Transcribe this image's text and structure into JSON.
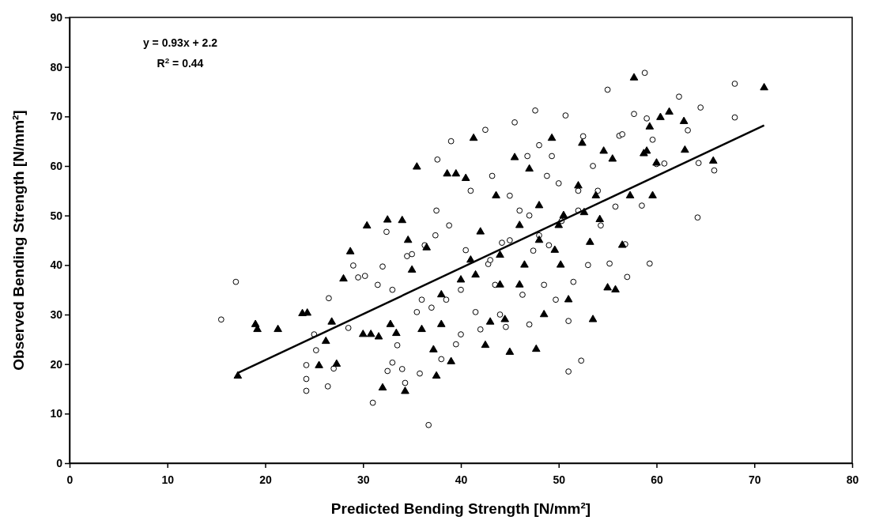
{
  "chart_data": {
    "type": "scatter",
    "xlabel": "Predicted Bending Strength [N/mm²]",
    "ylabel": "Observed Bending Strength [N/mm²]",
    "xlim": [
      0,
      80
    ],
    "xticks": [
      0,
      10,
      20,
      30,
      40,
      50,
      60,
      70,
      80
    ],
    "ylim": [
      0,
      90
    ],
    "yticks": [
      0,
      10,
      20,
      30,
      40,
      50,
      60,
      70,
      80,
      90
    ],
    "annotations": [
      "y = 0.93x + 2.2",
      "R$^{2}$ = 0.44"
    ],
    "series": [
      {
        "marker": "circle",
        "color": "#000000",
        "x": [
          15.5,
          17,
          24.2,
          24.2,
          24.2,
          25,
          25.2,
          26.4,
          26.5,
          27,
          28.5,
          29,
          29.5,
          30.2,
          31,
          31.5,
          32,
          32.4,
          32.5,
          33,
          33.5,
          34,
          34.3,
          34.5,
          35,
          35.5,
          35.8,
          36.3,
          36.7,
          37,
          37.4,
          37.5,
          37.6,
          38,
          38.5,
          38.8,
          39,
          39.5,
          40,
          40.5,
          41,
          41.5,
          42,
          42.5,
          42.8,
          43.2,
          43.5,
          44,
          44.2,
          44.6,
          45,
          45.5,
          46,
          46.3,
          46.8,
          47,
          47.4,
          47.6,
          48,
          48.5,
          48.8,
          49,
          49.3,
          49.7,
          50,
          50.3,
          50.7,
          51,
          51,
          51.5,
          52,
          52.3,
          52.5,
          53,
          53.5,
          54,
          54.3,
          55,
          55.2,
          55.8,
          56.2,
          56.5,
          56.8,
          57,
          57.7,
          58.5,
          58.8,
          59,
          59.3,
          59.6,
          60,
          60.8,
          62.3,
          63.2,
          64.2,
          64.3,
          64.5,
          65.9,
          68,
          68,
          43,
          45,
          40,
          47,
          33,
          36,
          52,
          48
        ],
        "values": [
          29,
          36.6,
          19.8,
          17,
          14.6,
          26,
          22.8,
          15.5,
          33.3,
          19.1,
          27.3,
          39.9,
          37.5,
          37.8,
          12.2,
          36,
          39.7,
          46.7,
          18.6,
          20.3,
          23.8,
          19,
          16.2,
          41.8,
          42.2,
          30.5,
          18.1,
          44,
          7.7,
          31.4,
          46,
          51,
          61.3,
          21,
          33,
          48,
          65,
          24,
          35,
          43,
          55,
          30.5,
          27,
          67.3,
          40.2,
          58,
          36,
          30,
          44.5,
          27.5,
          54,
          68.8,
          51,
          34,
          62,
          28,
          42.9,
          71.2,
          64.2,
          36,
          58,
          44,
          62,
          33,
          56.5,
          48.9,
          70.2,
          18.5,
          28.7,
          36.6,
          51,
          20.7,
          66,
          40,
          60,
          55,
          48,
          75.4,
          40.3,
          51.8,
          66.1,
          66.4,
          44.2,
          37.6,
          70.5,
          52,
          78.8,
          69.6,
          40.3,
          65.3,
          60.4,
          60.5,
          74,
          67.2,
          49.6,
          60.6,
          71.8,
          59.1,
          76.6,
          69.8,
          41,
          45,
          26,
          50,
          35,
          33,
          55,
          46
        ]
      },
      {
        "marker": "triangle",
        "color": "#000000",
        "x": [
          17.2,
          19,
          19.2,
          21.3,
          23.8,
          24.3,
          25.5,
          26.2,
          26.8,
          27.3,
          28.7,
          28,
          30,
          30.4,
          30.8,
          31.6,
          32,
          32.5,
          32.8,
          33.4,
          34,
          34.3,
          34.6,
          35.5,
          36,
          36.5,
          37.2,
          37.5,
          38,
          38.6,
          39,
          39.5,
          40,
          40.5,
          41.3,
          41.5,
          42,
          42.5,
          43,
          43.6,
          44,
          44.5,
          45,
          45.5,
          46,
          46.5,
          47,
          47.7,
          48,
          48.5,
          49.3,
          49.6,
          50.2,
          50.5,
          51,
          52,
          52.4,
          53.2,
          53.5,
          53.8,
          54.2,
          54.6,
          55,
          55.5,
          55.8,
          56.5,
          57.3,
          57.7,
          58.7,
          59,
          59.3,
          59.6,
          60,
          60.4,
          61.3,
          62.8,
          62.9,
          65.8,
          71,
          44,
          41,
          38,
          35,
          48,
          46,
          50,
          52.6
        ],
        "values": [
          17.6,
          28,
          27,
          27,
          30.2,
          30.3,
          19.7,
          24.6,
          28.5,
          20,
          42.7,
          37.2,
          26,
          47.9,
          26,
          25.5,
          15.2,
          49.1,
          28,
          26.2,
          49,
          14.5,
          45,
          59.8,
          27,
          43.5,
          22.9,
          17.6,
          28,
          58.4,
          20.5,
          58.4,
          37,
          57.5,
          65.6,
          38,
          46.7,
          23.8,
          28.5,
          54,
          42,
          29,
          22.4,
          61.7,
          48,
          40,
          59.4,
          23,
          52,
          30,
          65.6,
          43,
          40,
          50,
          33,
          56,
          64.6,
          44.6,
          29,
          54,
          49.2,
          63,
          35.4,
          61.4,
          35,
          44,
          54,
          77.8,
          62.5,
          63,
          67.9,
          54,
          60.6,
          69.8,
          70.9,
          69,
          63.2,
          61,
          75.8,
          36,
          41,
          34,
          39,
          45,
          36,
          48,
          50.6
        ]
      },
      {
        "type": "line",
        "line_style": "solid",
        "color": "#000000",
        "x": [
          17.2,
          71
        ],
        "values": [
          18.2,
          68.2
        ]
      }
    ]
  }
}
